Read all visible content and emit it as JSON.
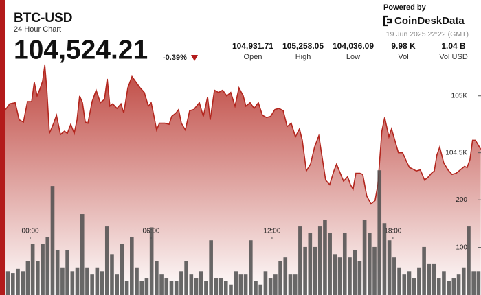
{
  "header": {
    "title": "BTC-USD",
    "subtitle": "24 Hour Chart",
    "price": "104,524.21",
    "change": "-0.39%",
    "stats": [
      {
        "value": "104,931.71",
        "label": "Open"
      },
      {
        "value": "105,258.05",
        "label": "High"
      },
      {
        "value": "104,036.09",
        "label": "Low"
      },
      {
        "value": "9.98 K",
        "label": "Vol"
      },
      {
        "value": "1.04 B",
        "label": "Vol USD"
      }
    ],
    "powered_by": "Powered by",
    "brand": "CoinDeskData",
    "timestamp": "19 Jun 2025 22:22 (GMT)"
  },
  "chart_data": [
    {
      "type": "area",
      "color": "#b3261e",
      "xlim": [
        -1.23,
        22.37
      ],
      "ylim": [
        103250,
        105300
      ],
      "xticks": [
        {
          "value": 0,
          "label": "00:00"
        },
        {
          "value": 6,
          "label": "06:00"
        },
        {
          "value": 12,
          "label": "12:00"
        },
        {
          "value": 18,
          "label": "18:00"
        }
      ],
      "yticks": [
        {
          "value": 105000,
          "label": "105K"
        },
        {
          "value": 104500,
          "label": "104.5K"
        }
      ],
      "x": [
        -1.23,
        -1.02,
        -0.75,
        -0.55,
        -0.34,
        -0.14,
        0.07,
        0.2,
        0.34,
        0.48,
        0.61,
        0.72,
        0.82,
        0.95,
        1.16,
        1.3,
        1.5,
        1.7,
        1.84,
        2.01,
        2.18,
        2.32,
        2.45,
        2.59,
        2.73,
        2.86,
        3.07,
        3.27,
        3.48,
        3.68,
        3.82,
        3.95,
        4.09,
        4.3,
        4.5,
        4.64,
        4.84,
        5.05,
        5.25,
        5.45,
        5.66,
        5.86,
        6,
        6.14,
        6.27,
        6.41,
        6.68,
        6.89,
        7.02,
        7.23,
        7.36,
        7.5,
        7.7,
        7.91,
        8.11,
        8.39,
        8.59,
        8.8,
        8.93,
        9.14,
        9.34,
        9.55,
        9.75,
        9.95,
        10.16,
        10.36,
        10.57,
        10.7,
        10.91,
        11.11,
        11.32,
        11.52,
        11.73,
        11.93,
        12.14,
        12.34,
        12.55,
        12.75,
        12.95,
        13.16,
        13.36,
        13.5,
        13.7,
        13.91,
        14.11,
        14.32,
        14.45,
        14.66,
        14.86,
        15.07,
        15.2,
        15.41,
        15.55,
        15.75,
        15.89,
        16.02,
        16.16,
        16.36,
        16.5,
        16.7,
        16.91,
        17.11,
        17.25,
        17.45,
        17.59,
        17.8,
        17.93,
        18.14,
        18.27,
        18.48,
        18.68,
        18.82,
        18.95,
        19.16,
        19.36,
        19.57,
        19.77,
        19.91,
        20.05,
        20.18,
        20.32,
        20.52,
        20.73,
        20.93,
        21.14,
        21.34,
        21.55,
        21.68,
        21.82,
        21.95,
        22.09,
        22.36
      ],
      "values": [
        104880,
        104930,
        104940,
        104790,
        104770,
        104950,
        104950,
        105120,
        105000,
        105060,
        105130,
        105270,
        105060,
        104670,
        104760,
        104830,
        104660,
        104690,
        104670,
        104750,
        104670,
        104790,
        105000,
        104940,
        104770,
        104760,
        104950,
        105050,
        104940,
        104970,
        105150,
        104910,
        104930,
        104890,
        104930,
        104850,
        105070,
        105170,
        105120,
        105070,
        105030,
        104910,
        104940,
        104820,
        104700,
        104760,
        104760,
        104750,
        104820,
        104850,
        104880,
        104760,
        104700,
        104870,
        104880,
        104940,
        104820,
        104990,
        104790,
        105050,
        105030,
        105050,
        105000,
        105030,
        104910,
        105070,
        105000,
        104910,
        104940,
        104890,
        104940,
        104830,
        104810,
        104820,
        104880,
        104890,
        104870,
        104730,
        104760,
        104640,
        104710,
        104610,
        104340,
        104400,
        104550,
        104650,
        104500,
        104260,
        104220,
        104340,
        104400,
        104310,
        104250,
        104290,
        104220,
        104180,
        104320,
        104320,
        104310,
        104120,
        104050,
        104080,
        104220,
        104690,
        104810,
        104640,
        104710,
        104580,
        104500,
        104500,
        104420,
        104370,
        104360,
        104340,
        104350,
        104260,
        104290,
        104320,
        104340,
        104480,
        104550,
        104410,
        104350,
        104310,
        104320,
        104350,
        104380,
        104370,
        104440,
        104610,
        104610,
        104530
      ]
    },
    {
      "type": "bar",
      "color": "#4d4d4d",
      "ylim": [
        0,
        490
      ],
      "yticks": [
        100,
        200
      ],
      "categories": [
        null,
        null,
        null,
        null,
        null,
        null,
        null,
        null,
        null,
        null,
        null,
        null,
        null,
        null,
        null,
        null,
        null,
        null,
        null,
        null,
        null,
        null,
        null,
        null,
        null,
        null,
        null,
        null,
        null,
        null,
        null,
        null,
        null,
        null,
        null,
        null,
        null,
        null,
        null,
        null,
        null,
        null,
        null,
        null,
        null,
        null,
        null,
        null,
        null,
        null,
        null,
        null,
        null,
        null,
        null,
        null,
        null,
        null,
        null,
        null,
        null,
        null,
        null,
        null,
        null,
        null,
        null,
        null,
        null,
        null,
        null,
        null,
        null,
        null,
        null,
        null,
        null,
        null,
        null,
        null,
        null,
        null,
        null,
        null,
        null,
        null,
        null,
        null,
        null,
        null,
        null,
        null,
        null,
        null,
        null,
        null
      ],
      "values": [
        50,
        46,
        55,
        50,
        72,
        108,
        72,
        108,
        122,
        229,
        94,
        58,
        94,
        50,
        58,
        170,
        58,
        43,
        58,
        50,
        144,
        86,
        43,
        108,
        29,
        122,
        58,
        29,
        36,
        142,
        72,
        43,
        36,
        29,
        29,
        50,
        72,
        43,
        36,
        50,
        29,
        115,
        36,
        36,
        29,
        22,
        50,
        43,
        43,
        115,
        29,
        22,
        50,
        36,
        43,
        72,
        79,
        43,
        43,
        144,
        101,
        130,
        101,
        144,
        158,
        130,
        86,
        79,
        130,
        79,
        94,
        72,
        158,
        130,
        101,
        262,
        151,
        115,
        79,
        58,
        43,
        50,
        36,
        58,
        101,
        65,
        65,
        36,
        50,
        29,
        36,
        43,
        58,
        144,
        50,
        50
      ]
    }
  ]
}
